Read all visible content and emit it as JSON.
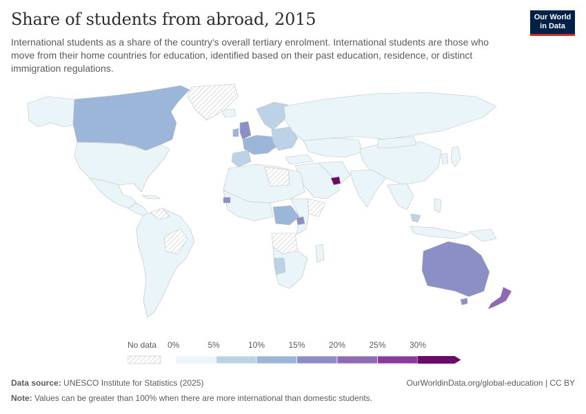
{
  "header": {
    "title": "Share of students from abroad, 2015",
    "subtitle": "International students as a share of the country's overall tertiary enrolment. International students are those who move from their home countries for education, identified based on their past education, residence, or distinct immigration regulations.",
    "logo_line1": "Our World",
    "logo_line2": "in Data"
  },
  "legend": {
    "no_data_label": "No data",
    "bins": [
      "0%",
      "5%",
      "10%",
      "15%",
      "20%",
      "25%",
      "30%"
    ],
    "colors": [
      "#e9f5f9",
      "#bcd2e6",
      "#9cb6d9",
      "#8b8fc6",
      "#8e69b5",
      "#8a3a9c",
      "#6b0a6a"
    ]
  },
  "footer": {
    "source_label": "Data source:",
    "source_text": "UNESCO Institute for Statistics (2025)",
    "link_text": "OurWorldinData.org/global-education | CC BY",
    "note_label": "Note:",
    "note_text": "Values can be greater than 100% when there are more international than domestic students."
  }
}
